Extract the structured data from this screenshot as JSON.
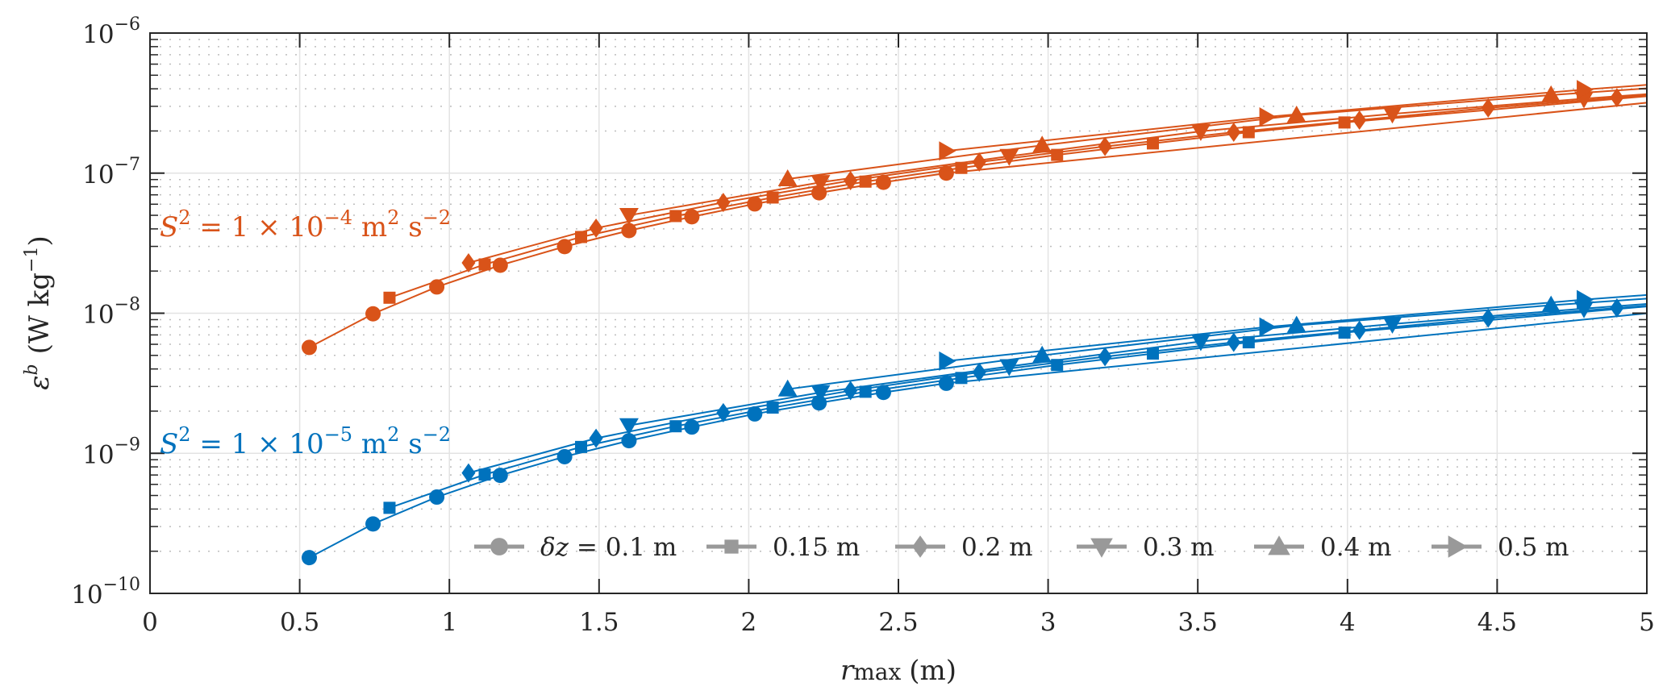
{
  "chart_data": {
    "type": "line",
    "title": "",
    "xlabel": "r_max (m)",
    "xlabel_main": "r",
    "xlabel_sub": "max",
    "xlabel_unit": "(m)",
    "ylabel": "ε^b (W kg^-1)",
    "ylabel_main": "ε",
    "ylabel_sup": "b",
    "ylabel_unit_open": "(W kg",
    "ylabel_unit_sup": "−1",
    "ylabel_unit_close": ")",
    "xscale": "linear",
    "yscale": "log",
    "xlim": [
      0,
      5
    ],
    "ylim": [
      1e-10,
      1e-06
    ],
    "grid": "major and minor (dotted minor on y)",
    "xticks": [
      0,
      0.5,
      1,
      1.5,
      2,
      2.5,
      3,
      3.5,
      4,
      4.5,
      5
    ],
    "xtick_labels": [
      "0",
      "0.5",
      "1",
      "1.5",
      "2",
      "2.5",
      "3",
      "3.5",
      "4",
      "4.5",
      "5"
    ],
    "yticks": [
      1e-10,
      1e-09,
      1e-08,
      1e-07,
      1e-06
    ],
    "ytick_labels": [
      {
        "base": "10",
        "exp": "−10"
      },
      {
        "base": "10",
        "exp": "−9"
      },
      {
        "base": "10",
        "exp": "−8"
      },
      {
        "base": "10",
        "exp": "−7"
      },
      {
        "base": "10",
        "exp": "−6"
      }
    ],
    "groups": [
      {
        "name": "S2_1e-4",
        "color": "#D95319",
        "annotation": {
          "lhs": "S",
          "lhs_sup": "2",
          "mid": " = 1 × 10",
          "mid_sup": "−4",
          "unit": " m",
          "unit_sup1": "2",
          "unit_s": " s",
          "unit_sup2": "−2"
        },
        "series": [
          {
            "dz": "0.1 m",
            "marker": "circle",
            "x": [
              0.532,
              0.745,
              0.958,
              1.17,
              1.385,
              1.6,
              1.81,
              2.02,
              2.235,
              2.45,
              2.66
            ],
            "y": [
              5.7e-09,
              9.9e-09,
              1.54e-08,
              2.2e-08,
              2.99e-08,
              3.89e-08,
              4.88e-08,
              6.03e-08,
              7.24e-08,
              8.6e-08,
              1e-07
            ]
          },
          {
            "dz": "0.15 m",
            "marker": "square",
            "x": [
              0.8,
              1.118,
              1.44,
              1.756,
              2.08,
              2.39,
              2.71,
              3.03,
              3.35,
              3.67,
              3.99
            ],
            "y": [
              1.29e-08,
              2.23e-08,
              3.5e-08,
              4.94e-08,
              6.7e-08,
              8.7e-08,
              1.09e-07,
              1.35e-07,
              1.63e-07,
              1.96e-07,
              2.3e-07
            ]
          },
          {
            "dz": "0.2 m",
            "marker": "diamond",
            "x": [
              1.064,
              1.49,
              1.915,
              2.34,
              2.77,
              3.19,
              3.62,
              4.04,
              4.47,
              4.9
            ],
            "y": [
              2.29e-08,
              4.05e-08,
              6.18e-08,
              8.85e-08,
              1.2e-07,
              1.55e-07,
              1.96e-07,
              2.39e-07,
              2.92e-07,
              3.46e-07
            ]
          },
          {
            "dz": "0.3 m",
            "marker": "triangle-down",
            "x": [
              1.6,
              2.24,
              2.87,
              3.51,
              4.15,
              4.79
            ],
            "y": [
              5e-08,
              8.6e-08,
              1.32e-07,
              1.99e-07,
              2.65e-07,
              3.4e-07
            ]
          },
          {
            "dz": "0.4 m",
            "marker": "triangle-up",
            "x": [
              2.13,
              2.98,
              3.83,
              4.68
            ],
            "y": [
              9.08e-08,
              1.58e-07,
              2.59e-07,
              3.61e-07
            ]
          },
          {
            "dz": "0.5 m",
            "marker": "triangle-right",
            "x": [
              2.66,
              3.73,
              4.79
            ],
            "y": [
              1.44e-07,
              2.52e-07,
              3.95e-07
            ]
          }
        ]
      },
      {
        "name": "S2_1e-5",
        "color": "#0072BD",
        "annotation": {
          "lhs": "S",
          "lhs_sup": "2",
          "mid": " = 1 × 10",
          "mid_sup": "−5",
          "unit": " m",
          "unit_sup1": "2",
          "unit_s": " s",
          "unit_sup2": "−2"
        },
        "series": [
          {
            "dz": "0.1 m",
            "marker": "circle",
            "x": [
              0.532,
              0.745,
              0.958,
              1.17,
              1.385,
              1.6,
              1.81,
              2.02,
              2.235,
              2.45,
              2.66
            ],
            "y": [
              1.8e-10,
              3.13e-10,
              4.87e-10,
              6.96e-10,
              9.46e-10,
              1.23e-09,
              1.54e-09,
              1.91e-09,
              2.29e-09,
              2.72e-09,
              3.16e-09
            ]
          },
          {
            "dz": "0.15 m",
            "marker": "square",
            "x": [
              0.8,
              1.118,
              1.44,
              1.756,
              2.08,
              2.39,
              2.71,
              3.03,
              3.35,
              3.67,
              3.99
            ],
            "y": [
              4.08e-10,
              7.05e-10,
              1.11e-09,
              1.56e-09,
              2.12e-09,
              2.75e-09,
              3.45e-09,
              4.27e-09,
              5.15e-09,
              6.2e-09,
              7.27e-09
            ]
          },
          {
            "dz": "0.2 m",
            "marker": "diamond",
            "x": [
              1.064,
              1.49,
              1.915,
              2.34,
              2.77,
              3.19,
              3.62,
              4.04,
              4.47,
              4.9
            ],
            "y": [
              7.24e-10,
              1.28e-09,
              1.95e-09,
              2.8e-09,
              3.79e-09,
              4.9e-09,
              6.2e-09,
              7.56e-09,
              9.23e-09,
              1.09e-08
            ]
          },
          {
            "dz": "0.3 m",
            "marker": "triangle-down",
            "x": [
              1.6,
              2.24,
              2.87,
              3.51,
              4.15,
              4.79
            ],
            "y": [
              1.58e-09,
              2.72e-09,
              4.17e-09,
              6.29e-09,
              8.38e-09,
              1.08e-08
            ]
          },
          {
            "dz": "0.4 m",
            "marker": "triangle-up",
            "x": [
              2.13,
              2.98,
              3.83,
              4.68
            ],
            "y": [
              2.87e-09,
              5e-09,
              8.19e-09,
              1.14e-08
            ]
          },
          {
            "dz": "0.5 m",
            "marker": "triangle-right",
            "x": [
              2.66,
              3.73,
              4.79
            ],
            "y": [
              4.55e-09,
              7.97e-09,
              1.25e-08
            ]
          }
        ]
      }
    ],
    "legend": {
      "placement": "bottom-center (inside axes)",
      "color": "#999999",
      "entries": [
        {
          "marker": "circle",
          "prefix": "δz = ",
          "label": "0.1 m"
        },
        {
          "marker": "square",
          "prefix": "",
          "label": "0.15 m"
        },
        {
          "marker": "diamond",
          "prefix": "",
          "label": "0.2 m"
        },
        {
          "marker": "triangle-down",
          "prefix": "",
          "label": "0.3 m"
        },
        {
          "marker": "triangle-up",
          "prefix": "",
          "label": "0.4 m"
        },
        {
          "marker": "triangle-right",
          "prefix": "",
          "label": "0.5 m"
        }
      ]
    }
  }
}
